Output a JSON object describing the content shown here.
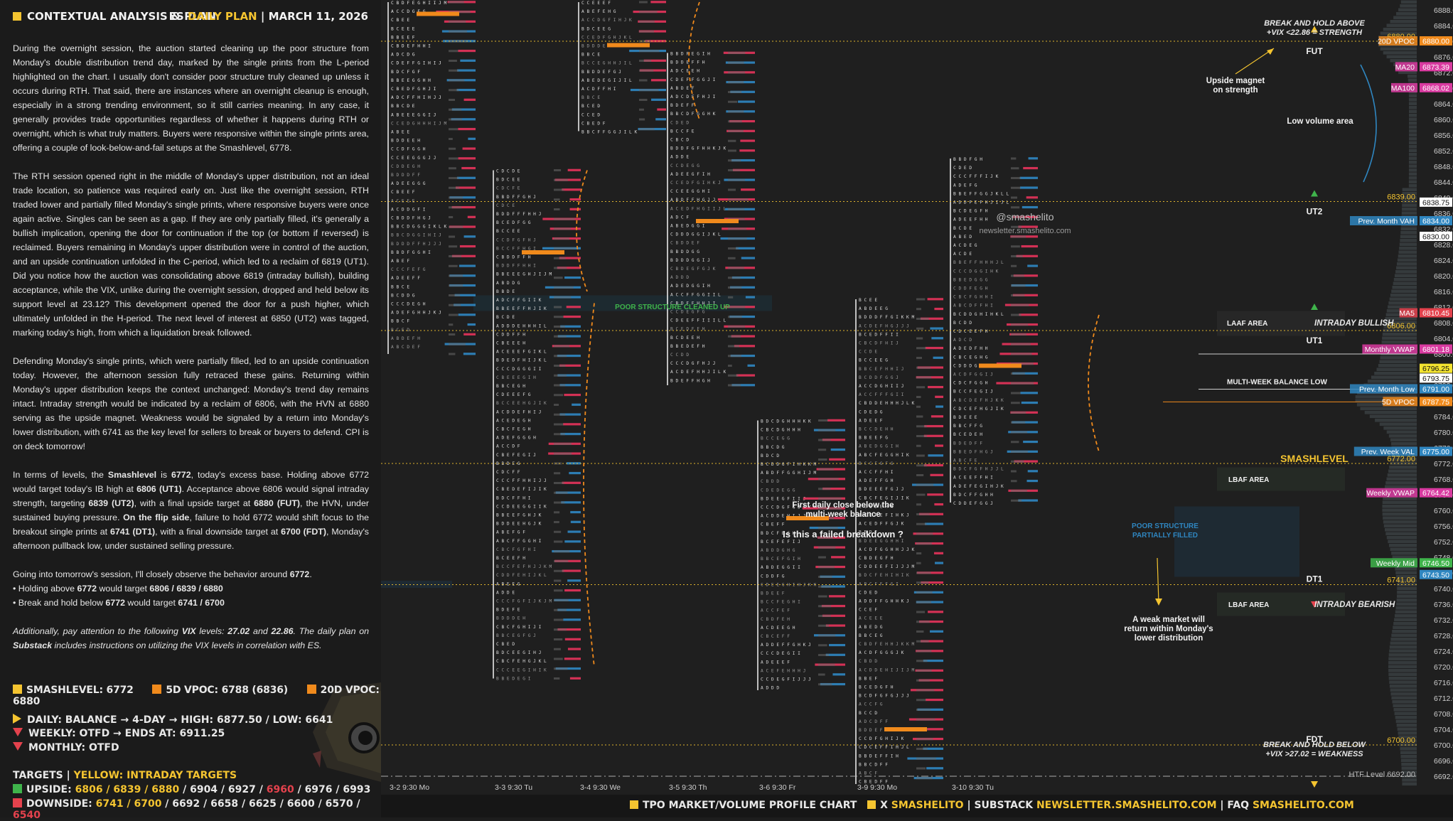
{
  "header": {
    "title": "CONTEXTUAL ANALYSIS & PLAN",
    "symbol": "ES",
    "plan": "DAILY PLAN",
    "sep": "|",
    "date": "MARCH 11, 2026"
  },
  "paragraphs": [
    "During the overnight session, the auction started cleaning up the poor structure from Monday's double distribution trend day, marked by the single prints from the L-period highlighted on the chart. I usually don't consider poor structure truly cleaned up unless it occurs during RTH. That said, there are instances where an overnight cleanup is enough, especially in a strong trending environment, so it still carries meaning. In any case, it generally provides trade opportunities regardless of whether it happens during RTH or overnight, which is what truly matters. Buyers were responsive within the single prints area, offering a couple of look-below-and-fail setups at the Smashlevel, 6778.",
    "The RTH session opened right in the middle of Monday's upper distribution, not an ideal trade location, so patience was required early on. Just like the overnight session, RTH traded lower and partially filled Monday's single prints, where responsive buyers were once again active. Singles can be seen as a gap. If they are only partially filled, it's generally a bullish implication, opening the door for continuation if the top (or bottom if reversed) is reclaimed. Buyers remaining in Monday's upper distribution were in control of the auction, and an upside continuation unfolded in the C-period, which led to a reclaim of 6819 (UT1). Did you notice how the auction was consolidating above 6819 (intraday bullish), building acceptance, while the VIX, unlike during the overnight session, dropped and held below its support level at 23.12? This development opened the door for a push higher, which ultimately unfolded in the H-period. The next level of interest at 6850 (UT2) was tagged, marking today's high, from which a liquidation break followed.",
    "Defending Monday's single prints, which were partially filled, led to an upside continuation today. However, the afternoon session fully retraced these gains. Returning within Monday's upper distribution keeps the context unchanged: Monday's trend day remains intact. Intraday strength would be indicated by a reclaim of 6806, with the HVN at 6880 serving as the upside magnet. Weakness would be signaled by a return into Monday's lower distribution, with 6741 as the key level for sellers to break or buyers to defend. CPI is on deck tomorrow!"
  ],
  "levels_para": {
    "p1": "In terms of levels, the ",
    "smash": "Smashlevel",
    "p2": " is ",
    "smash_val": "6772",
    "p3": ", today's excess base. Holding above 6772 would target today's IB high at ",
    "ut1": "6806 (UT1)",
    "p4": ". Acceptance above 6806 would signal intraday strength, targeting ",
    "ut2": "6839 (UT2)",
    "p5": ", with a final upside target at ",
    "fut": "6880 (FUT)",
    "p6": ", the HVN, under sustained buying pressure. ",
    "flip": "On the flip side",
    "p7": ", failure to hold 6772 would shift focus to the breakout single prints at ",
    "dt1": "6741 (DT1)",
    "p8": ", with a final downside target at ",
    "fdt": "6700 (FDT)",
    "p9": ", Monday's afternoon pullback low, under sustained selling pressure."
  },
  "observe": {
    "lead": "Going into tomorrow's session, I'll closely observe the behavior around ",
    "lead_val": "6772",
    "b1a": "• Holding above ",
    "b1v": "6772",
    "b1b": " would target ",
    "b1t": "6806 / 6839 / 6880",
    "b2a": "• Break and hold below ",
    "b2v": "6772",
    "b2b": " would target ",
    "b2t": "6741 / 6700"
  },
  "vix_note": {
    "a": "Additionally, pay attention to the following ",
    "vix": "VIX",
    "b": " levels: ",
    "v1": "27.02",
    "c": " and ",
    "v2": "22.86",
    "d": ". The daily plan on ",
    "sub": "Substack",
    "e": " includes instructions on utilizing the VIX levels in correlation with ES."
  },
  "key_levels": [
    {
      "label": "SMASHLEVEL: 6772",
      "color": "#f4c430"
    },
    {
      "label": "5D VPOC: 6788 (6836)",
      "color": "#f08a1c"
    },
    {
      "label": "20D VPOC: 6880",
      "color": "#f08a1c"
    }
  ],
  "status": [
    {
      "icon": "tri-right",
      "text": "DAILY: BALANCE → 4-DAY → HIGH: 6877.50 / LOW: 6641"
    },
    {
      "icon": "tri-down",
      "text": "WEEKLY: OTFD → ENDS AT: 6911.25"
    },
    {
      "icon": "tri-down",
      "text": "MONTHLY: OTFD"
    }
  ],
  "targets": {
    "title": "TARGETS",
    "sep": "|",
    "subtitle": "YELLOW: INTRADAY TARGETS",
    "upside_label": "UPSIDE:",
    "upside_y": "6806 / 6839 / 6880",
    "upside_w": " / 6904 / 6927 / ",
    "upside_r": "6960",
    "upside_w2": " / 6976 / 6993",
    "downside_label": "DOWNSIDE:",
    "downside_y": "6741 / 6700",
    "downside_w": " / 6692 / 6658 / 6625 / 6600 / 6570 / ",
    "downside_r": "6540"
  },
  "footer": {
    "a": "TPO MARKET/VOLUME PROFILE CHART",
    "b": "X",
    "handle": "SMASHELITO",
    "c": "SUBSTACK",
    "newsletter": "NEWSLETTER.SMASHELITO.COM",
    "d": "FAQ",
    "site": "SMASHELITO.COM",
    "sep": "|"
  },
  "chart_data": {
    "type": "tpo-profile",
    "y_ticks": [
      6888,
      6884,
      6880,
      6876,
      6872,
      6868,
      6864,
      6860,
      6856,
      6852,
      6848,
      6844,
      6840,
      6836,
      6832,
      6828,
      6824,
      6820,
      6816,
      6812,
      6808,
      6804,
      6800,
      6796,
      6792,
      6788,
      6784,
      6780,
      6776,
      6772,
      6768,
      6764,
      6760,
      6756,
      6752,
      6748,
      6744,
      6740,
      6736,
      6732,
      6728,
      6724,
      6720,
      6716,
      6712,
      6708,
      6704,
      6700,
      6696,
      6692
    ],
    "ylim": [
      6690,
      6890
    ],
    "sessions": [
      {
        "label": "3-2  9:30 Mo",
        "hi": 6890,
        "lo": 6800,
        "poc": 6887
      },
      {
        "label": "3-3  9:30 Tu",
        "hi": 6847,
        "lo": 6717,
        "poc": 6826
      },
      {
        "label": "3-4  9:30 We",
        "hi": 6890,
        "lo": 6857,
        "poc": 6879
      },
      {
        "label": "3-5  9:30 Th",
        "hi": 6877,
        "lo": 6792,
        "poc": 6834
      },
      {
        "label": "3-6  9:30 Fr",
        "hi": 6783,
        "lo": 6714,
        "poc": 6758
      },
      {
        "label": "3-9  9:30 Mo",
        "hi": 6814,
        "lo": 6690,
        "poc": 6704
      },
      {
        "label": "3-10 9:30 Tu",
        "hi": 6850,
        "lo": 6762,
        "poc": 6797
      }
    ],
    "price_tags": [
      {
        "label": "20D VPOC",
        "value": "6880.00",
        "color": "#f08a1c"
      },
      {
        "label": "MA20",
        "value": "6873.39",
        "color": "#d93aa0"
      },
      {
        "label": "MA100",
        "value": "6868.02",
        "color": "#d93aa0"
      },
      {
        "label": "",
        "value": "6838.75",
        "color": "#ffffff"
      },
      {
        "label": "Prev. Month VAH",
        "value": "6834.00",
        "color": "#2f86c0"
      },
      {
        "label": "",
        "value": "6830.00",
        "color": "#ffffff"
      },
      {
        "label": "MA5",
        "value": "6810.45",
        "color": "#e4424d"
      },
      {
        "label": "Monthly VWAP",
        "value": "6801.18",
        "color": "#d93aa0"
      },
      {
        "label": "",
        "value": "6796.25",
        "color": "#f4e430"
      },
      {
        "label": "",
        "value": "6793.75",
        "color": "#ffffff"
      },
      {
        "label": "Prev. Month Low",
        "value": "6791.00",
        "color": "#2f86c0"
      },
      {
        "label": "5D VPOC",
        "value": "6787.75",
        "color": "#f08a1c"
      },
      {
        "label": "Prev. Week VAL",
        "value": "6775.00",
        "color": "#2f86c0"
      },
      {
        "label": "Weekly VWAP",
        "value": "6764.42",
        "color": "#d93aa0"
      },
      {
        "label": "Weekly Mid",
        "value": "6746.50",
        "color": "#3fb44b"
      },
      {
        "label": "",
        "value": "6743.50",
        "color": "#2f86c0"
      }
    ],
    "levels": [
      {
        "name": "FUT",
        "value": 6880.0,
        "color": "#f4c430"
      },
      {
        "name": "UT2",
        "value": 6839.0,
        "color": "#f4c430"
      },
      {
        "name": "UT1",
        "value": 6806.0,
        "color": "#f4c430"
      },
      {
        "name": "SMASHLEVEL",
        "value": 6772.0,
        "color": "#f4c430"
      },
      {
        "name": "DT1",
        "value": 6741.0,
        "color": "#f4c430"
      },
      {
        "name": "FDT",
        "value": 6700.0,
        "color": "#f4c430"
      },
      {
        "name": "HTF Level",
        "value": 6692.0,
        "color": "#bbbbbb"
      }
    ],
    "level_value_labels": {
      "v6880": "6880.00",
      "v6839": "6839.00",
      "v6806": "6806.00",
      "v6772": "6772.00",
      "v6741": "6741.00",
      "v6700": "6700.00",
      "htf": "HTF Level  6692.00"
    },
    "annotations": {
      "break_above_1": "BREAK AND HOLD ABOVE",
      "break_above_2": "+VIX <22.86 = STRENGTH",
      "break_below_1": "BREAK AND HOLD BELOW",
      "break_below_2": "+VIX >27.02 = WEAKNESS",
      "upside_magnet_1": "Upside magnet",
      "upside_magnet_2": "on strength",
      "low_volume": "Low volume area",
      "handle": "@smashelito",
      "newsletter": "newsletter.smashelito.com",
      "poor_cleaned": "POOR STRUCTURE CLEANED UP",
      "poor_partial_1": "POOR STRUCTURE",
      "poor_partial_2": "PARTIALLY FILLED",
      "first_close_1": "First daily close below the",
      "first_close_2": "multi-week balance",
      "failed_breakdown": "Is this a failed breakdown ?",
      "weak_market_1": "A weak market will",
      "weak_market_2": "return within Monday's",
      "weak_market_3": "lower distribution",
      "laaf": "LAAF AREA",
      "intraday_bullish": "INTRADAY BULLISH",
      "multi_week": "MULTI-WEEK BALANCE LOW",
      "lbaf1": "LBAF AREA",
      "lbaf2": "LBAF AREA",
      "intraday_bearish": "INTRADAY BEARISH",
      "smashlevel": "SMASHLEVEL"
    }
  }
}
